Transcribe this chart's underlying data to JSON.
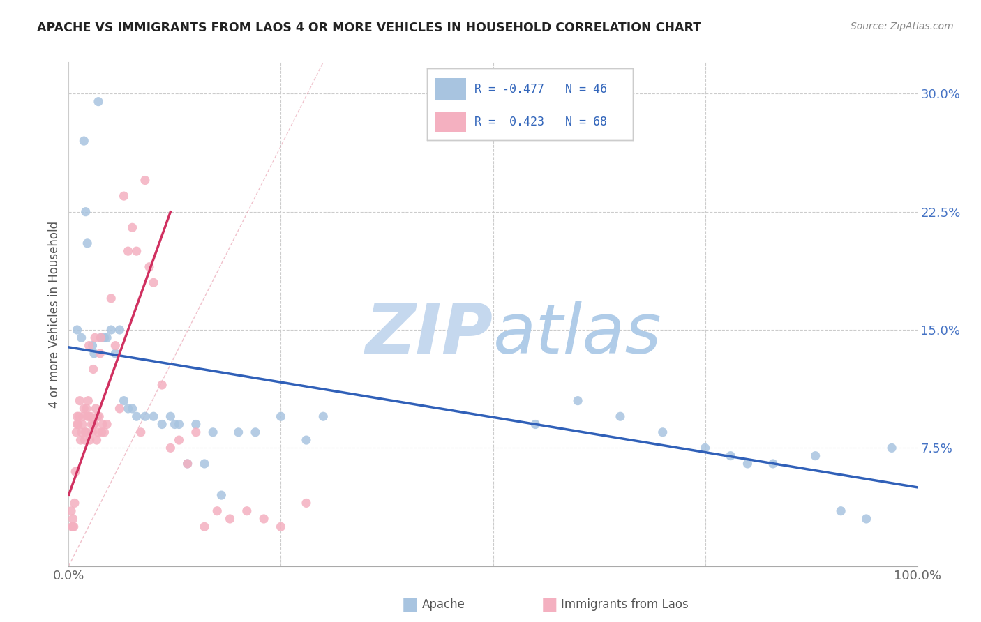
{
  "title": "APACHE VS IMMIGRANTS FROM LAOS 4 OR MORE VEHICLES IN HOUSEHOLD CORRELATION CHART",
  "source": "Source: ZipAtlas.com",
  "ylabel": "4 or more Vehicles in Household",
  "R_apache": -0.477,
  "N_apache": 46,
  "R_laos": 0.423,
  "N_laos": 68,
  "apache_color": "#a8c4e0",
  "laos_color": "#f4b0c0",
  "apache_line_color": "#3060b8",
  "laos_line_color": "#d03060",
  "ref_line_color": "#e8a0b0",
  "watermark_zip_color": "#c5d8ee",
  "watermark_atlas_color": "#b0cce8",
  "title_color": "#222222",
  "source_color": "#888888",
  "ytick_color": "#4472c4",
  "xtick_color": "#666666",
  "grid_color": "#cccccc",
  "legend_color": "#3366bb",
  "xlim": [
    0,
    100
  ],
  "ylim": [
    0,
    32
  ],
  "apache_x": [
    3.5,
    1.8,
    1.5,
    2.0,
    2.2,
    1.0,
    2.8,
    3.8,
    4.5,
    5.0,
    3.0,
    4.2,
    5.5,
    6.0,
    6.5,
    7.0,
    7.5,
    8.0,
    9.0,
    10.0,
    11.0,
    12.0,
    12.5,
    13.0,
    14.0,
    15.0,
    16.0,
    17.0,
    18.0,
    20.0,
    22.0,
    25.0,
    28.0,
    30.0,
    55.0,
    60.0,
    65.0,
    70.0,
    75.0,
    78.0,
    80.0,
    83.0,
    88.0,
    91.0,
    94.0,
    97.0
  ],
  "apache_y": [
    29.5,
    27.0,
    14.5,
    22.5,
    20.5,
    15.0,
    14.0,
    14.5,
    14.5,
    15.0,
    13.5,
    14.5,
    13.5,
    15.0,
    10.5,
    10.0,
    10.0,
    9.5,
    9.5,
    9.5,
    9.0,
    9.5,
    9.0,
    9.0,
    6.5,
    9.0,
    6.5,
    8.5,
    4.5,
    8.5,
    8.5,
    9.5,
    8.0,
    9.5,
    9.0,
    10.5,
    9.5,
    8.5,
    7.5,
    7.0,
    6.5,
    6.5,
    7.0,
    3.5,
    3.0,
    7.5
  ],
  "laos_x": [
    0.3,
    0.4,
    0.5,
    0.5,
    0.6,
    0.7,
    0.8,
    0.9,
    1.0,
    1.0,
    1.1,
    1.2,
    1.3,
    1.4,
    1.5,
    1.6,
    1.7,
    1.8,
    1.9,
    2.0,
    2.0,
    2.1,
    2.2,
    2.3,
    2.4,
    2.4,
    2.5,
    2.6,
    2.7,
    2.8,
    2.9,
    3.0,
    3.0,
    3.1,
    3.2,
    3.3,
    3.4,
    3.5,
    3.6,
    3.7,
    3.8,
    3.9,
    4.0,
    4.2,
    4.5,
    5.0,
    5.5,
    6.0,
    6.5,
    7.0,
    7.5,
    8.0,
    8.5,
    9.0,
    9.5,
    10.0,
    11.0,
    12.0,
    13.0,
    14.0,
    15.0,
    16.0,
    17.5,
    19.0,
    21.0,
    23.0,
    25.0,
    28.0
  ],
  "laos_y": [
    3.5,
    2.5,
    2.5,
    3.0,
    2.5,
    4.0,
    6.0,
    8.5,
    9.0,
    9.5,
    9.0,
    9.5,
    10.5,
    8.0,
    8.5,
    9.0,
    9.5,
    10.0,
    8.0,
    8.5,
    8.5,
    10.0,
    9.5,
    10.5,
    9.5,
    14.0,
    8.0,
    9.5,
    9.0,
    8.5,
    12.5,
    9.0,
    9.0,
    14.5,
    10.0,
    8.0,
    9.5,
    8.5,
    9.5,
    13.5,
    14.5,
    8.5,
    9.0,
    8.5,
    9.0,
    17.0,
    14.0,
    10.0,
    23.5,
    20.0,
    21.5,
    20.0,
    8.5,
    24.5,
    19.0,
    18.0,
    11.5,
    7.5,
    8.0,
    6.5,
    8.5,
    2.5,
    3.5,
    3.0,
    3.5,
    3.0,
    2.5,
    4.0
  ],
  "apache_trend_x": [
    0,
    100
  ],
  "apache_trend_y": [
    13.9,
    5.0
  ],
  "laos_trend_x": [
    0,
    12
  ],
  "laos_trend_y": [
    4.5,
    22.5
  ],
  "ref_line_x": [
    0,
    30
  ],
  "ref_line_y": [
    0,
    32
  ]
}
